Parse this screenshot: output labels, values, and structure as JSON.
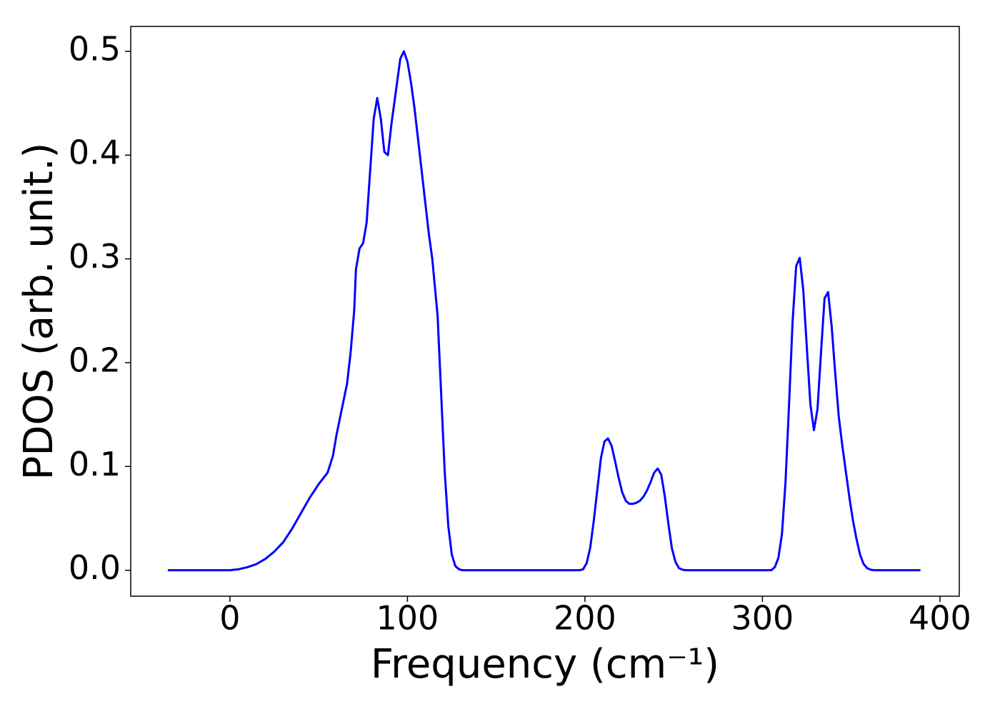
{
  "chart_data": {
    "type": "line",
    "xlabel": "Frequency (cm⁻¹)",
    "ylabel": "PDOS (arb. unit.)",
    "xlim": [
      -55.9,
      410.9
    ],
    "ylim": [
      -0.025,
      0.524
    ],
    "xticks": [
      0,
      100,
      200,
      300,
      400
    ],
    "yticks": [
      {
        "value": 0,
        "label": "0.0"
      },
      0.1,
      0.2,
      0.3,
      0.4,
      0.5
    ],
    "grid": false,
    "series": [
      {
        "color": "#0000ff",
        "x": [
          -35,
          0,
          5,
          10,
          15,
          20,
          25,
          30,
          35,
          40,
          45,
          50,
          55,
          58,
          60,
          63,
          66,
          68,
          70,
          71,
          73,
          75,
          77,
          79,
          81,
          83,
          85,
          87,
          89,
          91,
          94,
          96,
          98,
          100,
          102,
          104,
          106,
          108,
          110,
          112,
          114,
          117,
          119,
          121,
          123,
          125,
          127,
          129,
          131,
          197,
          199,
          201,
          203,
          205,
          207,
          209,
          211,
          213,
          215,
          217,
          219,
          221,
          223,
          225,
          227,
          229,
          231,
          233,
          235,
          237,
          239,
          241,
          243,
          245,
          247,
          249,
          251,
          253,
          255,
          257,
          305,
          307,
          309,
          311,
          313,
          315,
          317,
          319,
          321,
          323,
          325,
          327,
          329,
          331,
          333,
          335,
          337,
          339,
          341,
          343,
          345,
          347,
          349,
          351,
          353,
          355,
          357,
          359,
          361,
          363,
          389
        ],
        "values": [
          0,
          0,
          0.001,
          0.003,
          0.006,
          0.011,
          0.018,
          0.027,
          0.04,
          0.055,
          0.07,
          0.083,
          0.094,
          0.11,
          0.13,
          0.155,
          0.18,
          0.21,
          0.25,
          0.29,
          0.31,
          0.315,
          0.335,
          0.385,
          0.435,
          0.455,
          0.435,
          0.403,
          0.4,
          0.43,
          0.468,
          0.493,
          0.5,
          0.49,
          0.47,
          0.445,
          0.415,
          0.385,
          0.355,
          0.325,
          0.3,
          0.245,
          0.17,
          0.095,
          0.043,
          0.015,
          0.004,
          0.001,
          0,
          0,
          0.001,
          0.007,
          0.022,
          0.048,
          0.078,
          0.108,
          0.124,
          0.127,
          0.12,
          0.105,
          0.089,
          0.075,
          0.067,
          0.064,
          0.064,
          0.065,
          0.067,
          0.071,
          0.077,
          0.085,
          0.094,
          0.098,
          0.092,
          0.071,
          0.045,
          0.021,
          0.008,
          0.002,
          0.0005,
          0,
          0,
          0.003,
          0.012,
          0.035,
          0.085,
          0.16,
          0.24,
          0.293,
          0.301,
          0.27,
          0.215,
          0.16,
          0.135,
          0.155,
          0.21,
          0.262,
          0.268,
          0.235,
          0.19,
          0.148,
          0.12,
          0.095,
          0.07,
          0.048,
          0.03,
          0.015,
          0.006,
          0.002,
          0.0005,
          0,
          0
        ]
      }
    ]
  }
}
